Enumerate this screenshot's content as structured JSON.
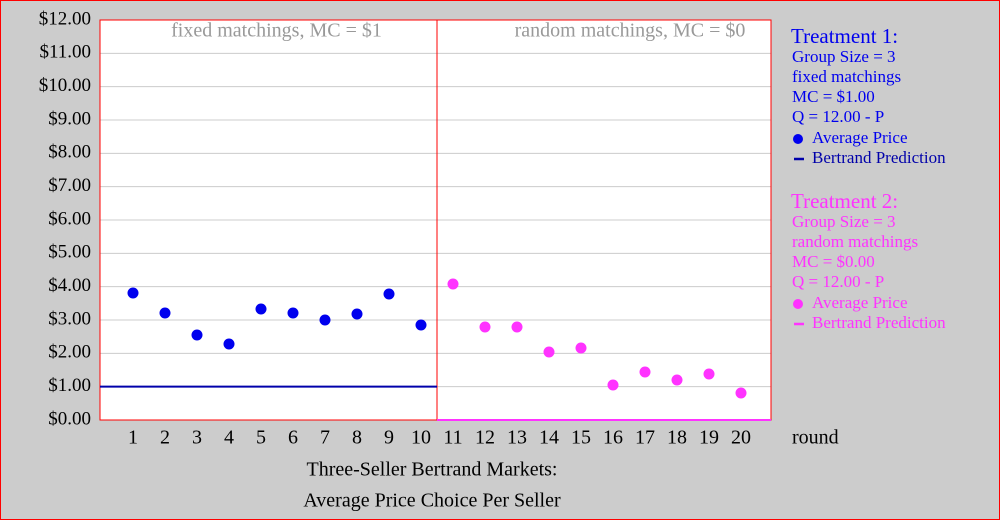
{
  "chart_data": {
    "type": "scatter",
    "title": [
      "Three-Seller Bertrand Markets:",
      "Average Price Choice Per Seller"
    ],
    "x_label": "round",
    "panels": [
      "fixed matchings, MC = $1",
      "random matchings, MC = $0"
    ],
    "divider_color": "#ff0000",
    "categories": [
      "1",
      "2",
      "3",
      "4",
      "5",
      "6",
      "7",
      "8",
      "9",
      "10",
      "11",
      "12",
      "13",
      "14",
      "15",
      "16",
      "17",
      "18",
      "19",
      "20"
    ],
    "ylim": [
      0,
      12
    ],
    "yticks": [
      {
        "value": 0,
        "label": "$0.00"
      },
      {
        "value": 1,
        "label": "$1.00"
      },
      {
        "value": 2,
        "label": "$2.00"
      },
      {
        "value": 3,
        "label": "$3.00"
      },
      {
        "value": 4,
        "label": "$4.00"
      },
      {
        "value": 5,
        "label": "$5.00"
      },
      {
        "value": 6,
        "label": "$6.00"
      },
      {
        "value": 7,
        "label": "$7.00"
      },
      {
        "value": 8,
        "label": "$8.00"
      },
      {
        "value": 9,
        "label": "$9.00"
      },
      {
        "value": 10,
        "label": "$10.00"
      },
      {
        "value": 11,
        "label": "$11.00"
      },
      {
        "value": 12,
        "label": "$12.00"
      }
    ],
    "grid": true,
    "treatments": [
      {
        "title": "Treatment 1:",
        "details": [
          "Group Size = 3",
          "fixed matchings",
          "MC = $1.00",
          "Q = 12.00 - P"
        ],
        "color": "#0000ee"
      },
      {
        "title": "Treatment 2:",
        "details": [
          "Group Size = 3",
          "random matchings",
          "MC = $0.00",
          "Q = 12.00 - P"
        ],
        "color": "#ff33ff"
      }
    ],
    "series": [
      {
        "name": "Average Price",
        "color": "#0000ee",
        "mark": "dot",
        "values": [
          3.81,
          3.21,
          2.55,
          2.28,
          3.33,
          3.21,
          3.0,
          3.18,
          3.78,
          2.85,
          null,
          null,
          null,
          null,
          null,
          null,
          null,
          null,
          null,
          null
        ]
      },
      {
        "name": "Bertrand Prediction",
        "color": "#0000aa",
        "mark": "line",
        "values": [
          1,
          1,
          1,
          1,
          1,
          1,
          1,
          1,
          1,
          1,
          null,
          null,
          null,
          null,
          null,
          null,
          null,
          null,
          null,
          null
        ]
      },
      {
        "name": "Average Price",
        "color": "#ff33ff",
        "mark": "dot",
        "values": [
          null,
          null,
          null,
          null,
          null,
          null,
          null,
          null,
          null,
          null,
          4.08,
          2.79,
          2.79,
          2.04,
          2.16,
          1.05,
          1.44,
          1.2,
          1.38,
          0.81
        ]
      },
      {
        "name": "Bertrand Prediction",
        "color": "#ff33ff",
        "mark": "line",
        "values": [
          null,
          null,
          null,
          null,
          null,
          null,
          null,
          null,
          null,
          null,
          0,
          0,
          0,
          0,
          0,
          0,
          0,
          0,
          0,
          0
        ]
      }
    ]
  }
}
